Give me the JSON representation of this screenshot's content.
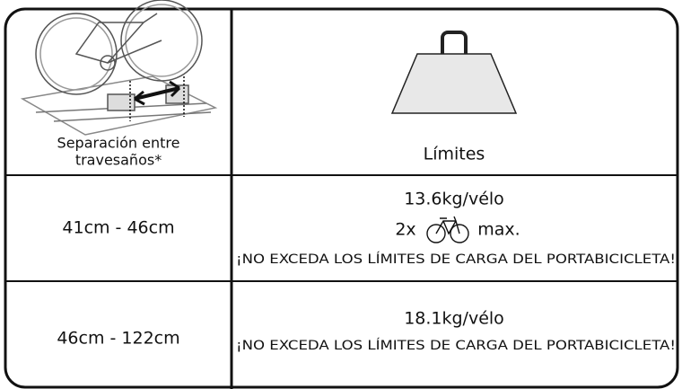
{
  "header": {
    "spacing_label": [
      "Separación entre",
      "travesaños*"
    ],
    "limits_label": "Límites"
  },
  "rows": [
    {
      "spacing": "41cm - 46cm",
      "limit": "13.6kg/vélo",
      "quantity_prefix": "2x",
      "quantity_suffix": "max.",
      "warning": "¡NO EXCEDA LOS LÍMITES DE CARGA DEL PORTABICICLETA!"
    },
    {
      "spacing": "46cm - 122cm",
      "limit": "18.1kg/vélo",
      "warning": "¡NO EXCEDA LOS LÍMITES DE CARGA DEL PORTABICICLETA!"
    }
  ]
}
